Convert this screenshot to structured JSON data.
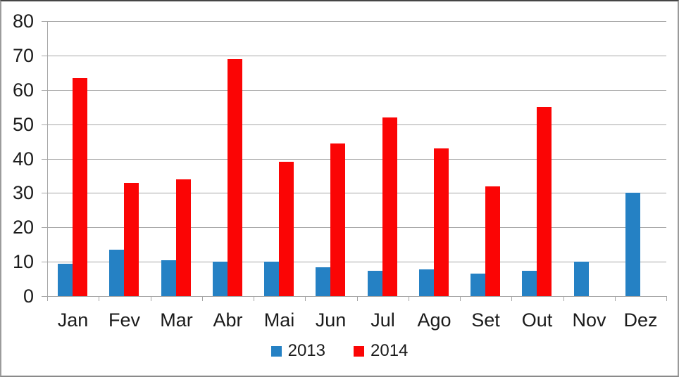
{
  "chart_data": {
    "type": "bar",
    "title": "",
    "xlabel": "",
    "ylabel": "",
    "categories": [
      "Jan",
      "Fev",
      "Mar",
      "Abr",
      "Mai",
      "Jun",
      "Jul",
      "Ago",
      "Set",
      "Out",
      "Nov",
      "Dez"
    ],
    "series": [
      {
        "name": "2013",
        "color": "#2581c4",
        "values": [
          9.4,
          13.6,
          10.5,
          10.1,
          10,
          8.3,
          7.3,
          7.7,
          6.5,
          7.3,
          10,
          30
        ]
      },
      {
        "name": "2014",
        "color": "#fb0505",
        "values": [
          63.5,
          33,
          34,
          69,
          39,
          44.5,
          52,
          43,
          32,
          55,
          null,
          null
        ]
      }
    ],
    "ylim": [
      0,
      80
    ],
    "ytick_step": 10,
    "ytick_labels": [
      "0",
      "10",
      "20",
      "30",
      "40",
      "50",
      "60",
      "70",
      "80"
    ],
    "grid": true,
    "legend_position": "bottom",
    "gridline_color": "#a6a6a6",
    "axis_color": "#a6a6a6",
    "text_color": "#1b1b1b",
    "background": "#ffffff"
  }
}
